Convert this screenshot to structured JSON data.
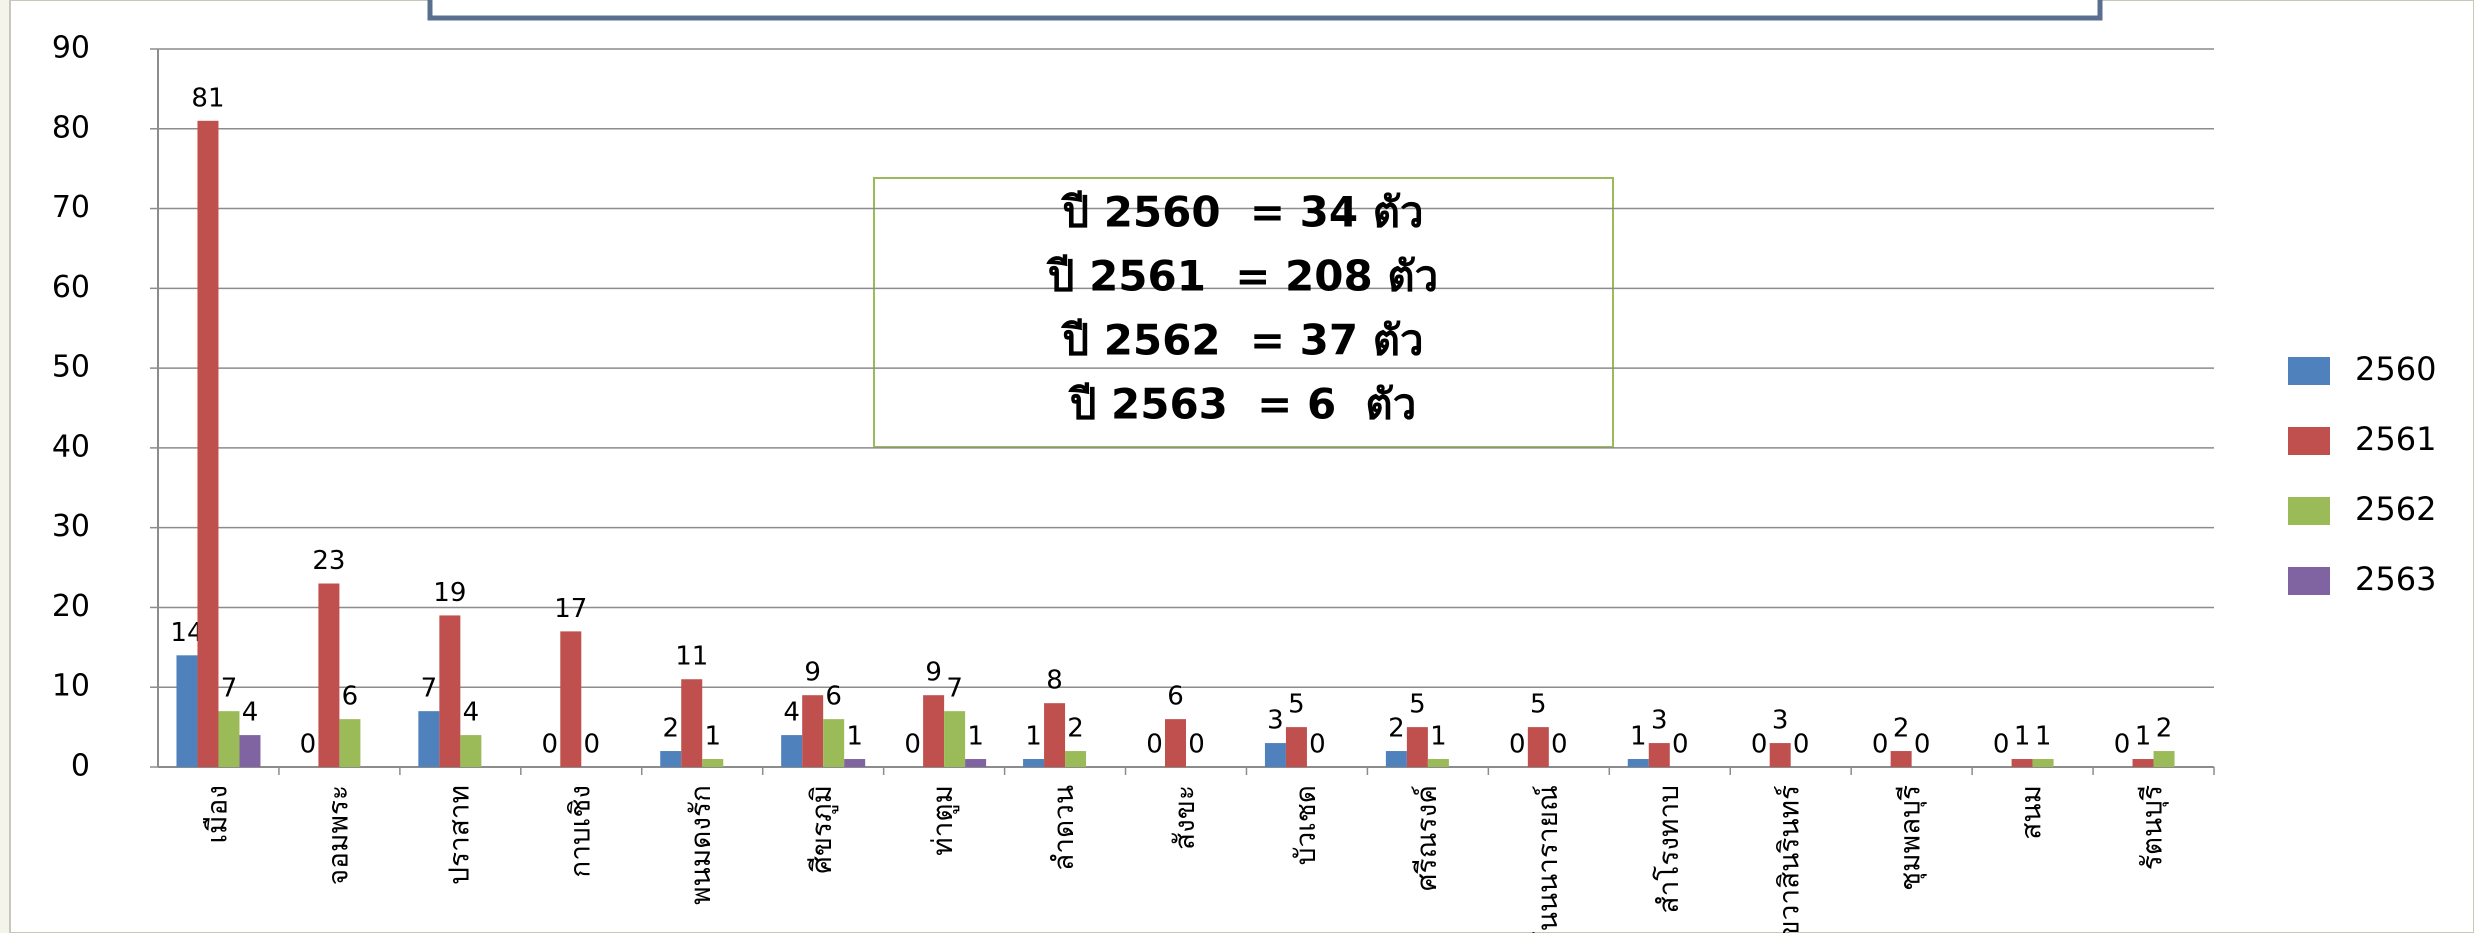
{
  "chart_data": {
    "type": "bar",
    "categories": [
      "เมือง",
      "จอมพระ",
      "ปราสาท",
      "กาบเชิง",
      "พนมดงรัก",
      "ศีขรภูมิ",
      "ท่าตูม",
      "ลำดวน",
      "สังขะ",
      "บัวเชด",
      "ศรีณรงค์",
      "โนนนารายณ์",
      "สำโรงทาบ",
      "เขวาสินรินทร์",
      "ชุมพลบุรี",
      "สนม",
      "รัตนบุรี"
    ],
    "series": [
      {
        "name": "2560",
        "color": "#4f81bd",
        "values": [
          14,
          0,
          7,
          0,
          2,
          4,
          0,
          1,
          0,
          3,
          2,
          0,
          1,
          0,
          0,
          0,
          0
        ]
      },
      {
        "name": "2561",
        "color": "#c0504d",
        "values": [
          81,
          23,
          19,
          17,
          11,
          9,
          9,
          8,
          6,
          5,
          5,
          5,
          3,
          3,
          2,
          1,
          1
        ]
      },
      {
        "name": "2562",
        "color": "#9bbb59",
        "values": [
          7,
          6,
          4,
          0,
          1,
          6,
          7,
          2,
          0,
          0,
          1,
          0,
          0,
          0,
          0,
          1,
          2
        ]
      },
      {
        "name": "2563",
        "color": "#8064a2",
        "values": [
          4,
          null,
          null,
          null,
          null,
          1,
          1,
          null,
          null,
          null,
          null,
          null,
          null,
          null,
          null,
          null,
          null
        ]
      }
    ],
    "ylim": [
      0,
      90
    ],
    "yticks": [
      0,
      10,
      20,
      30,
      40,
      50,
      60,
      70,
      80,
      90
    ],
    "grid": true,
    "legend": "right",
    "annotations": [
      "ปี 2560  = 34 ตัว",
      "ปี 2561  = 208 ตัว",
      "ปี 2562  = 37 ตัว",
      "ปี 2563  = 6  ตัว"
    ]
  }
}
